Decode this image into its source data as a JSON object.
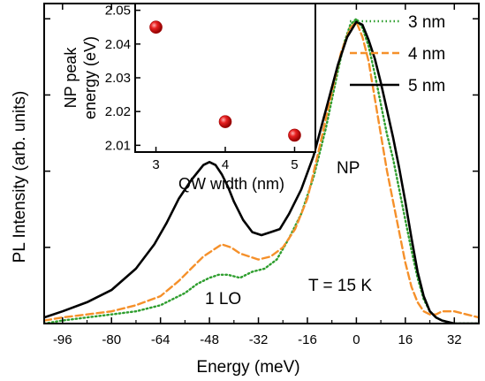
{
  "chart_data": [
    {
      "type": "line",
      "xlabel": "Energy (meV)",
      "ylabel": "PL Intensity (arb. units)",
      "xlim": [
        -102,
        40
      ],
      "ylim": [
        0,
        1.05
      ],
      "xticks": [
        -96,
        -80,
        -64,
        -48,
        -32,
        -16,
        0,
        16,
        32
      ],
      "legend_position": "top-right",
      "annotations": [
        "NP",
        "1 LO",
        "T = 15 K"
      ],
      "series": [
        {
          "name": "3 nm",
          "color": "#2e9e2e",
          "dash": "dotted",
          "x": [
            -102,
            -96,
            -88,
            -80,
            -72,
            -64,
            -56,
            -52,
            -48,
            -45,
            -42,
            -38,
            -34,
            -30,
            -26,
            -22,
            -18,
            -14,
            -10,
            -6,
            -4,
            -2,
            0,
            2,
            4,
            6,
            8,
            10,
            12,
            14,
            16,
            18,
            20,
            22,
            24,
            26,
            28,
            32,
            36,
            40
          ],
          "y": [
            0.0,
            0.01,
            0.02,
            0.03,
            0.04,
            0.06,
            0.1,
            0.13,
            0.15,
            0.16,
            0.16,
            0.15,
            0.17,
            0.18,
            0.21,
            0.28,
            0.36,
            0.48,
            0.64,
            0.83,
            0.92,
            0.98,
            1.0,
            0.97,
            0.91,
            0.82,
            0.72,
            0.62,
            0.54,
            0.44,
            0.34,
            0.24,
            0.15,
            0.08,
            0.04,
            0.02,
            0.01,
            0.0,
            0.0,
            0.0
          ]
        },
        {
          "name": "4 nm",
          "color": "#f5902a",
          "dash": "dashed",
          "x": [
            -102,
            -96,
            -88,
            -80,
            -72,
            -64,
            -58,
            -54,
            -50,
            -47,
            -44,
            -41,
            -38,
            -35,
            -32,
            -28,
            -24,
            -20,
            -16,
            -12,
            -8,
            -5,
            -2,
            0,
            2,
            4,
            6,
            8,
            10,
            12,
            14,
            16,
            18,
            20,
            22,
            24,
            26,
            28,
            32,
            36,
            40
          ],
          "y": [
            0.01,
            0.02,
            0.03,
            0.04,
            0.06,
            0.09,
            0.14,
            0.18,
            0.22,
            0.24,
            0.26,
            0.25,
            0.23,
            0.22,
            0.21,
            0.22,
            0.25,
            0.31,
            0.41,
            0.58,
            0.76,
            0.89,
            0.97,
            0.99,
            0.94,
            0.86,
            0.74,
            0.62,
            0.5,
            0.4,
            0.3,
            0.2,
            0.12,
            0.07,
            0.04,
            0.03,
            0.03,
            0.04,
            0.04,
            0.03,
            0.02
          ]
        },
        {
          "name": "5 nm",
          "color": "#000000",
          "dash": "solid",
          "x": [
            -102,
            -96,
            -88,
            -80,
            -72,
            -66,
            -62,
            -58,
            -54,
            -50,
            -48,
            -46,
            -44,
            -42,
            -40,
            -37,
            -34,
            -31,
            -28,
            -25,
            -22,
            -18,
            -14,
            -10,
            -6,
            -3,
            0,
            2,
            4,
            6,
            8,
            10,
            12,
            14,
            16,
            18,
            20,
            22,
            24,
            26,
            28,
            32,
            36,
            40
          ],
          "y": [
            0.02,
            0.04,
            0.07,
            0.11,
            0.18,
            0.26,
            0.33,
            0.41,
            0.47,
            0.52,
            0.53,
            0.52,
            0.49,
            0.45,
            0.4,
            0.34,
            0.3,
            0.29,
            0.3,
            0.31,
            0.36,
            0.44,
            0.55,
            0.7,
            0.85,
            0.94,
            0.99,
            0.98,
            0.93,
            0.87,
            0.79,
            0.7,
            0.61,
            0.51,
            0.4,
            0.28,
            0.17,
            0.09,
            0.04,
            0.02,
            0.01,
            0.0,
            0.0,
            0.0
          ]
        }
      ]
    },
    {
      "type": "scatter",
      "xlabel": "QW width (nm)",
      "ylabel": "NP peak energy (eV)",
      "ylabel_lines": [
        "NP peak",
        "energy (eV)"
      ],
      "xlim": [
        2.7,
        5.3
      ],
      "ylim": [
        2.008,
        2.052
      ],
      "xticks": [
        3,
        4,
        5
      ],
      "yticks": [
        "2.01",
        "2.02",
        "2.03",
        "2.04",
        "2.05"
      ],
      "x": [
        3,
        4,
        5
      ],
      "y": [
        2.045,
        2.017,
        2.013
      ],
      "marker_color": "#e01010"
    }
  ]
}
